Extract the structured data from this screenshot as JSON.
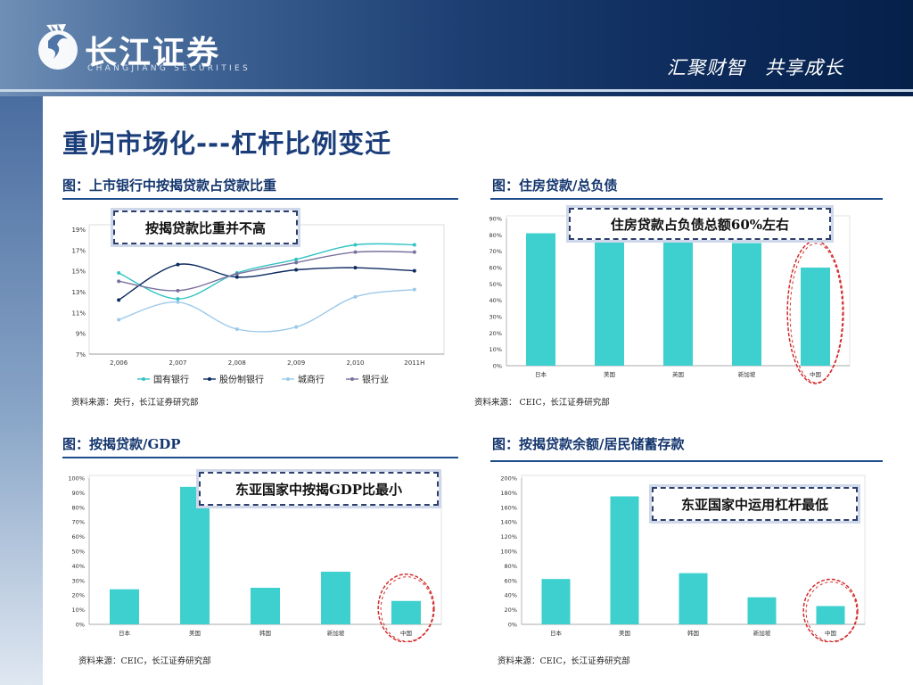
{
  "header": {
    "logo_cn": "长江证券",
    "logo_en": "CHANGJIANG SECURITIES",
    "slogan": "汇聚财智　共享成长",
    "bg_dark": "#06204a",
    "bg_light": "#6f8fb6"
  },
  "page": {
    "title": "重归市场化---杠杆比例变迁"
  },
  "colors": {
    "bar": "#3ecfcf",
    "highlight_circle": "#d42a2a",
    "accent_text": "#14366e"
  },
  "panels": [
    {
      "title": "图：上市银行中按揭贷款占贷款比重",
      "source": "资料来源：央行，长江证券研究部",
      "callout": "按揭贷款比重并不高"
    },
    {
      "title": "图：住房贷款/总负债",
      "source": "资料来源： CEIC，长江证券研究部",
      "callout": "住房贷款占负债总额60%左右"
    },
    {
      "title": "图：按揭贷款/GDP",
      "source": "资料来源：CEIC，长江证券研究部",
      "callout": "东亚国家中按揭GDP比最小"
    },
    {
      "title": "图：按揭贷款余额/居民储蓄存款",
      "source": "资料来源：CEIC，长江证券研究部",
      "callout": "东亚国家中运用杠杆最低"
    }
  ],
  "chart_data": [
    {
      "type": "line",
      "x": [
        "2,006",
        "2,007",
        "2,008",
        "2,009",
        "2,010",
        "2011H"
      ],
      "ylim": [
        7,
        19
      ],
      "yticks": [
        "7%",
        "9%",
        "11%",
        "13%",
        "15%",
        "17%",
        "19%"
      ],
      "legend_position": "bottom",
      "series": [
        {
          "name": "国有银行",
          "values": [
            14.8,
            12.3,
            14.8,
            16.1,
            17.5,
            17.5
          ],
          "color": "#33c3c3"
        },
        {
          "name": "股份制银行",
          "values": [
            12.2,
            15.6,
            14.4,
            15.1,
            15.3,
            15.0
          ],
          "color": "#0d2b60"
        },
        {
          "name": "城商行",
          "values": [
            10.3,
            12.0,
            9.4,
            9.6,
            12.5,
            13.2
          ],
          "color": "#9cc9ea"
        },
        {
          "name": "银行业",
          "values": [
            14.0,
            13.1,
            14.7,
            15.8,
            16.8,
            16.8
          ],
          "color": "#7a709e"
        }
      ]
    },
    {
      "type": "bar",
      "categories": [
        "日本",
        "美国",
        "英国",
        "新加坡",
        "中国"
      ],
      "values": [
        81,
        79,
        79,
        75,
        60
      ],
      "ylim": [
        0,
        90
      ],
      "yticks": [
        "0%",
        "10%",
        "20%",
        "30%",
        "40%",
        "50%",
        "60%",
        "70%",
        "80%",
        "90%"
      ],
      "highlight": "中国"
    },
    {
      "type": "bar",
      "categories": [
        "日本",
        "美国",
        "韩国",
        "新加坡",
        "中国"
      ],
      "values": [
        24,
        94,
        25,
        36,
        16
      ],
      "ylim": [
        0,
        100
      ],
      "yticks": [
        "0%",
        "10%",
        "20%",
        "30%",
        "40%",
        "50%",
        "60%",
        "70%",
        "80%",
        "90%",
        "100%"
      ],
      "highlight": "中国"
    },
    {
      "type": "bar",
      "categories": [
        "日本",
        "美国",
        "韩国",
        "新加坡",
        "中国"
      ],
      "values": [
        62,
        175,
        70,
        37,
        25
      ],
      "ylim": [
        0,
        200
      ],
      "yticks": [
        "0%",
        "20%",
        "40%",
        "60%",
        "80%",
        "100%",
        "120%",
        "140%",
        "160%",
        "180%",
        "200%"
      ],
      "highlight": "中国"
    }
  ]
}
